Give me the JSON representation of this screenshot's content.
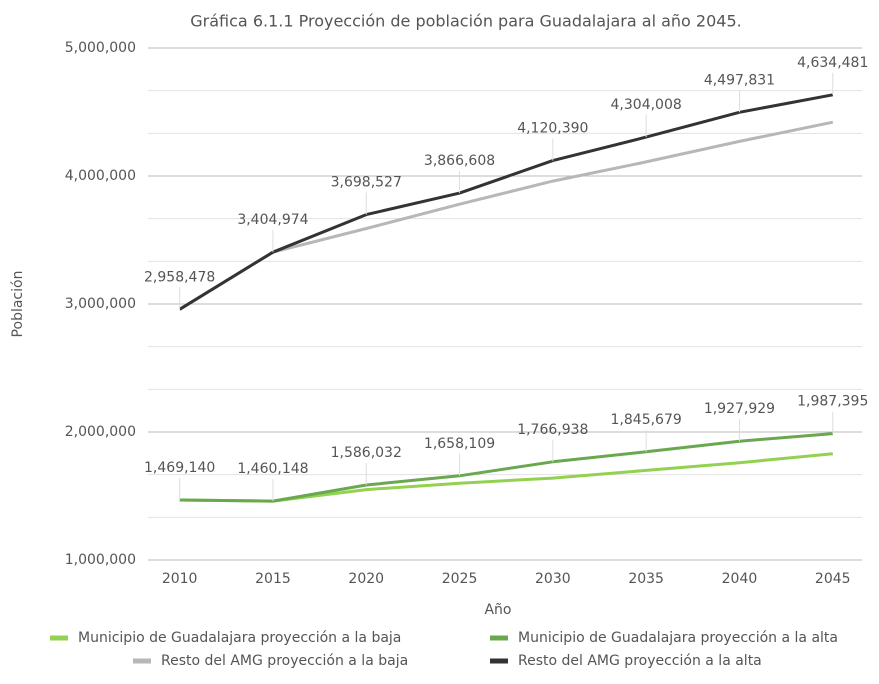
{
  "chart_data": {
    "type": "line",
    "title": "Gráfica 6.1.1 Proyección de población para Guadalajara al año 2045.",
    "x_label": "Año",
    "y_label": "Población",
    "categories": [
      "2010",
      "2015",
      "2020",
      "2025",
      "2030",
      "2035",
      "2040",
      "2045"
    ],
    "ylim": [
      1000000,
      5000000
    ],
    "yticks": [
      {
        "value": 1000000,
        "label": "1,000,000"
      },
      {
        "value": 2000000,
        "label": "2,000,000"
      },
      {
        "value": 3000000,
        "label": "3,000,000"
      },
      {
        "value": 4000000,
        "label": "4,000,000"
      },
      {
        "value": 5000000,
        "label": "5,000,000"
      }
    ],
    "grid": true,
    "series": [
      {
        "name": "Municipio de Guadalajara proyección a la baja",
        "color": "#93d150",
        "values": [
          1469140,
          1460148,
          1550000,
          1600000,
          1640000,
          1700000,
          1760000,
          1830000
        ]
      },
      {
        "name": "Municipio de Guadalajara proyección a la alta",
        "color": "#6aa84f",
        "values": [
          1469140,
          1460148,
          1586032,
          1658109,
          1766938,
          1845679,
          1927929,
          1987395
        ],
        "value_labels": [
          "1,469,140",
          "1,460,148",
          "1,586,032",
          "1,658,109",
          "1,766,938",
          "1,845,679",
          "1,927,929",
          "1,987,395"
        ]
      },
      {
        "name": "Resto del AMG proyección a la baja",
        "color": "#b7b7b7",
        "values": [
          2958478,
          3404974,
          3590000,
          3780000,
          3960000,
          4110000,
          4270000,
          4420000
        ]
      },
      {
        "name": "Resto del AMG proyección a la alta",
        "color": "#333333",
        "values": [
          2958478,
          3404974,
          3698527,
          3866608,
          4120390,
          4304008,
          4497831,
          4634481
        ],
        "value_labels": [
          "2,958,478",
          "3,404,974",
          "3,698,527",
          "3,866,608",
          "4,120,390",
          "4,304,008",
          "4,497,831",
          "4,634,481"
        ]
      }
    ]
  }
}
